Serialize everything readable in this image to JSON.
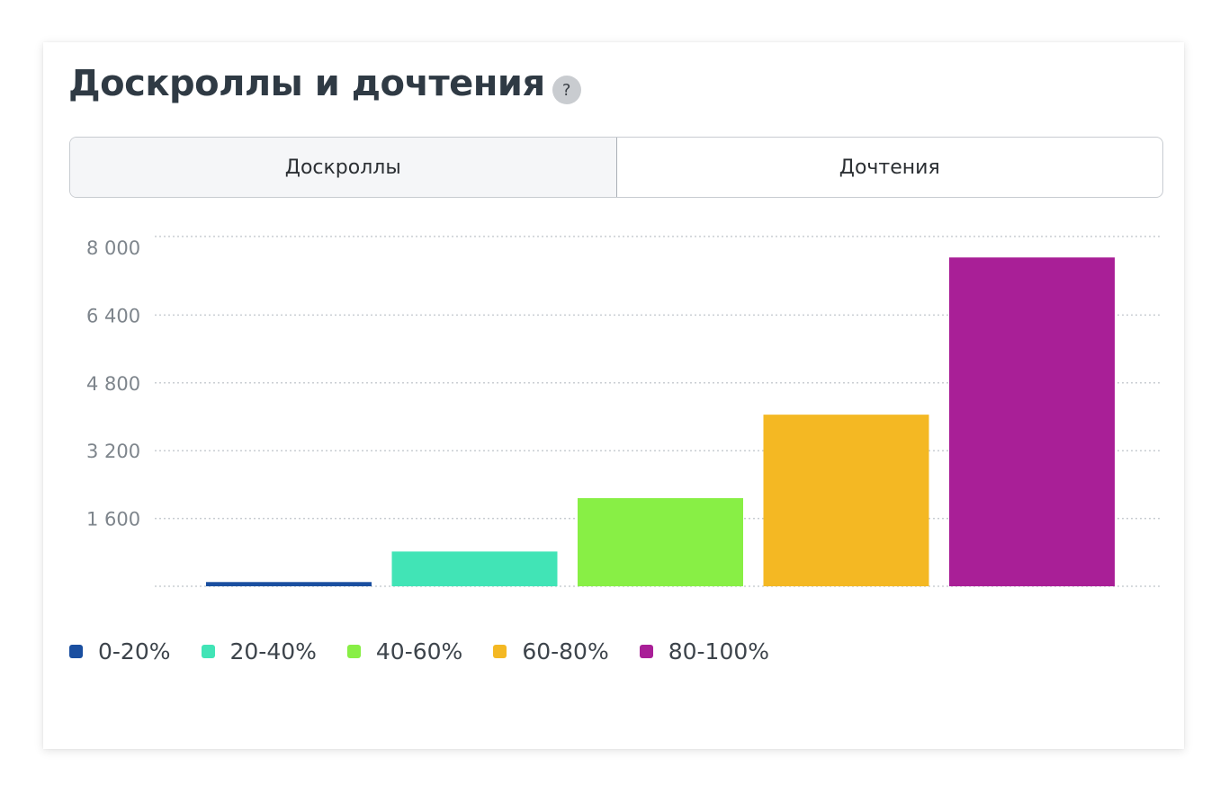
{
  "header": {
    "title": "Доскроллы и дочтения",
    "help_icon": "question-mark-icon",
    "help_glyph": "?"
  },
  "tabs": [
    {
      "label": "Доскроллы",
      "active": true
    },
    {
      "label": "Дочтения",
      "active": false
    }
  ],
  "chart_data": {
    "type": "bar",
    "categories": [
      "0-20%",
      "20-40%",
      "40-60%",
      "60-80%",
      "80-100%"
    ],
    "values": [
      100,
      820,
      2080,
      4050,
      7760
    ],
    "colors": [
      "#1a4fa0",
      "#41e4b6",
      "#88ef45",
      "#f4b823",
      "#a91f97"
    ],
    "ylim": [
      0,
      8000
    ],
    "yticks": [
      0,
      1600,
      3200,
      4800,
      6400,
      8000
    ],
    "ytick_labels": [
      "",
      "1 600",
      "3 200",
      "4 800",
      "6 400",
      "8 000"
    ],
    "grid": true,
    "grid_style": "dotted",
    "legend_position": "bottom-left",
    "title": "",
    "xlabel": "",
    "ylabel": ""
  },
  "legend": {
    "items": [
      {
        "label": "0-20%",
        "color": "#1a4fa0"
      },
      {
        "label": "20-40%",
        "color": "#41e4b6"
      },
      {
        "label": "40-60%",
        "color": "#88ef45"
      },
      {
        "label": "60-80%",
        "color": "#f4b823"
      },
      {
        "label": "80-100%",
        "color": "#a91f97"
      }
    ]
  }
}
